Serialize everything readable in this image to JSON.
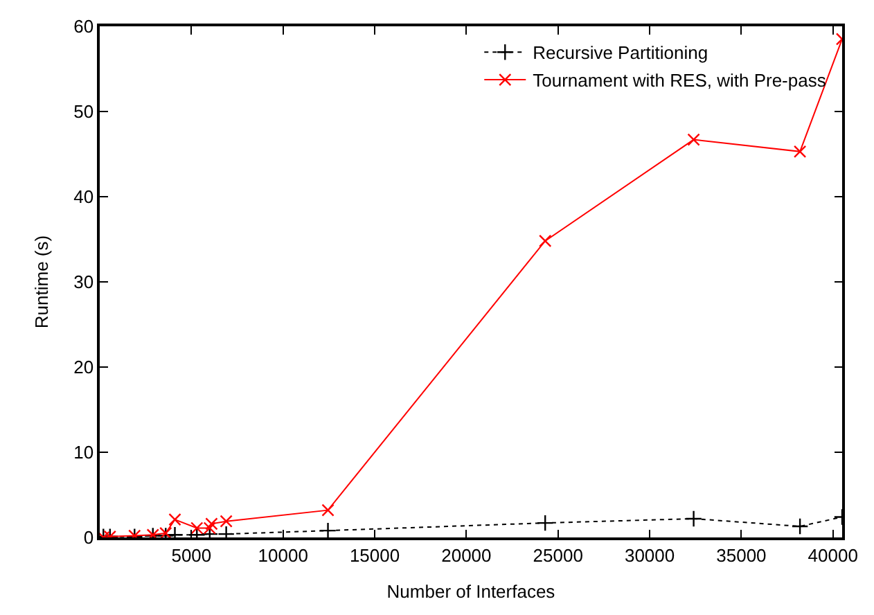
{
  "chart_data": {
    "type": "line",
    "xlabel": "Number of Interfaces",
    "ylabel": "Runtime (s)",
    "xlim": [
      0,
      40500
    ],
    "ylim": [
      0,
      60
    ],
    "xticks": [
      5000,
      10000,
      15000,
      20000,
      25000,
      30000,
      35000,
      40000
    ],
    "yticks": [
      0,
      10,
      20,
      30,
      40,
      50,
      60
    ],
    "legend": "top right",
    "series": [
      {
        "name": "Recursive Partitioning",
        "color": "#000000",
        "marker": "cross",
        "line_style": "dotted",
        "x": [
          200,
          560,
          1900,
          2900,
          3600,
          4100,
          5300,
          6000,
          6900,
          12450,
          24300,
          32400,
          38200,
          40500
        ],
        "values": [
          0.1,
          0.1,
          0.1,
          0.2,
          0.2,
          0.3,
          0.3,
          0.4,
          0.4,
          0.8,
          1.7,
          2.2,
          1.3,
          2.4
        ]
      },
      {
        "name": "Tournament with RES, with Pre-pass",
        "color": "#ff0000",
        "marker": "x",
        "line_style": "solid",
        "x": [
          200,
          560,
          1900,
          2900,
          3600,
          4100,
          5300,
          6000,
          6100,
          6900,
          12450,
          24300,
          32400,
          38200,
          40500
        ],
        "values": [
          0,
          0.1,
          0.2,
          0.3,
          0.5,
          2.1,
          1.1,
          1.1,
          1.6,
          1.9,
          3.2,
          34.8,
          46.7,
          45.3,
          58.5
        ]
      }
    ]
  }
}
